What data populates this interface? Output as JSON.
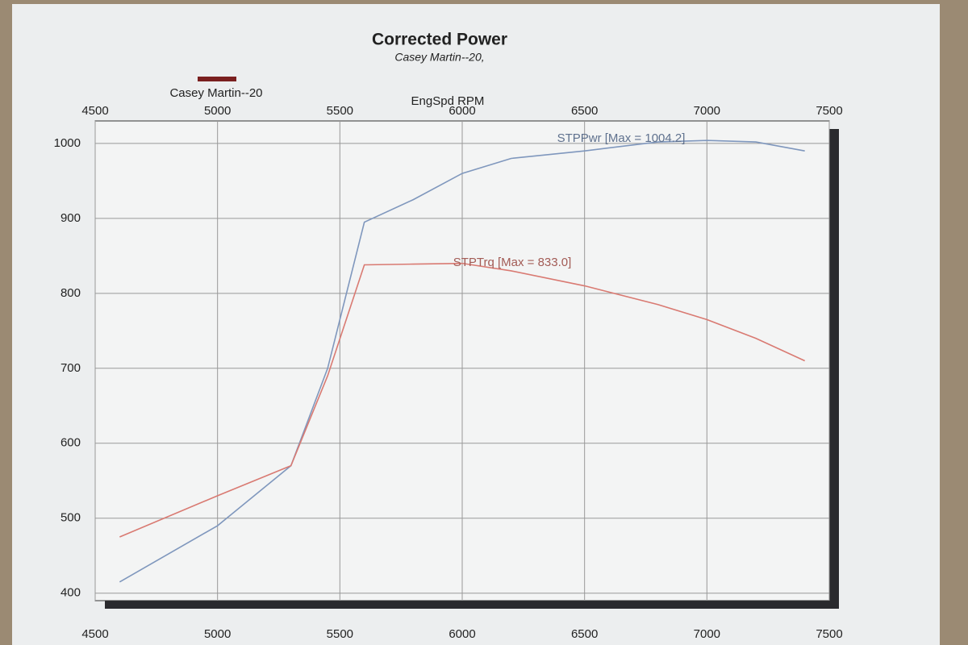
{
  "chart_data": {
    "type": "line",
    "title": "Corrected Power",
    "subtitle": "Casey Martin--20,",
    "x_label": "EngSpd RPM",
    "legend": {
      "label": "Casey Martin--20",
      "color": "#7a1f1f"
    },
    "xlim": [
      4500,
      7500
    ],
    "xticks": [
      4500,
      5000,
      5500,
      6000,
      6500,
      7000,
      7500
    ],
    "ylim": [
      390,
      1030
    ],
    "yticks": [
      400,
      500,
      600,
      700,
      800,
      900,
      1000
    ],
    "grid": true,
    "x": [
      4600,
      5000,
      5300,
      5450,
      5600,
      5800,
      6000,
      6200,
      6500,
      6800,
      7000,
      7200,
      7400
    ],
    "series": [
      {
        "color": "#7f97bd",
        "values": [
          415,
          490,
          570,
          700,
          895,
          925,
          960,
          980,
          990,
          1002,
          1004,
          1002,
          990
        ]
      },
      {
        "color": "#d97a72",
        "values": [
          475,
          530,
          570,
          690,
          838,
          839,
          840,
          830,
          810,
          785,
          765,
          740,
          710
        ]
      }
    ],
    "annotations": [
      "STPPwr [Max = 1004.2]",
      "STPTrq [Max = 833.0]"
    ]
  }
}
